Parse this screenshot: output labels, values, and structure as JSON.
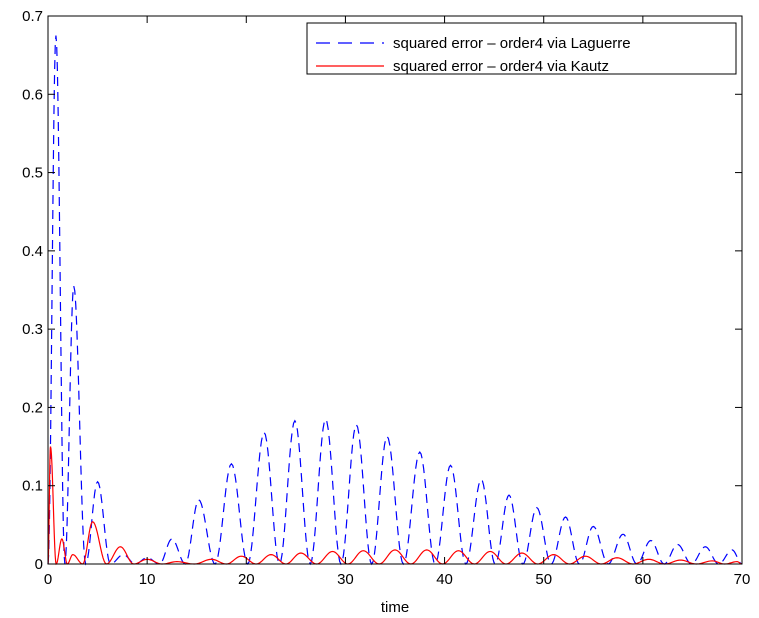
{
  "chart_data": {
    "type": "line",
    "title": "",
    "xlabel": "time",
    "ylabel": "",
    "xlim": [
      0,
      70
    ],
    "ylim": [
      0,
      0.7
    ],
    "xticks": [
      "0",
      "10",
      "20",
      "30",
      "40",
      "50",
      "60",
      "70"
    ],
    "yticks": [
      "0",
      "0.1",
      "0.2",
      "0.3",
      "0.4",
      "0.5",
      "0.6",
      "0.7"
    ],
    "grid": false,
    "legend_position": "top-right",
    "series": [
      {
        "name": "squared error – order4 via Laguerre",
        "color": "#0000ff",
        "dash": "dashed",
        "peaks": [
          [
            0.8,
            0.675
          ],
          [
            2.6,
            0.355
          ],
          [
            5.0,
            0.105
          ],
          [
            7.6,
            0.012
          ],
          [
            10.0,
            0.008
          ],
          [
            12.5,
            0.032
          ],
          [
            15.2,
            0.082
          ],
          [
            18.5,
            0.128
          ],
          [
            21.8,
            0.168
          ],
          [
            24.9,
            0.183
          ],
          [
            28.0,
            0.185
          ],
          [
            31.1,
            0.178
          ],
          [
            34.2,
            0.163
          ],
          [
            37.5,
            0.143
          ],
          [
            40.6,
            0.126
          ],
          [
            43.7,
            0.108
          ],
          [
            46.5,
            0.088
          ],
          [
            49.3,
            0.072
          ],
          [
            52.2,
            0.06
          ],
          [
            55.0,
            0.048
          ],
          [
            58.0,
            0.038
          ],
          [
            60.8,
            0.03
          ],
          [
            63.5,
            0.025
          ],
          [
            66.3,
            0.022
          ],
          [
            69.0,
            0.018
          ]
        ]
      },
      {
        "name": "squared error – order4 via Kautz",
        "color": "#ff0000",
        "dash": "solid",
        "peaks": [
          [
            0.25,
            0.15
          ],
          [
            1.4,
            0.032
          ],
          [
            2.5,
            0.012
          ],
          [
            4.5,
            0.054
          ],
          [
            7.3,
            0.022
          ],
          [
            10.0,
            0.006
          ],
          [
            13.0,
            0.003
          ],
          [
            16.5,
            0.006
          ],
          [
            19.5,
            0.01
          ],
          [
            22.5,
            0.012
          ],
          [
            25.5,
            0.014
          ],
          [
            28.7,
            0.016
          ],
          [
            31.8,
            0.017
          ],
          [
            35.0,
            0.018
          ],
          [
            38.2,
            0.018
          ],
          [
            41.4,
            0.017
          ],
          [
            44.6,
            0.016
          ],
          [
            47.8,
            0.014
          ],
          [
            51.0,
            0.012
          ],
          [
            54.2,
            0.01
          ],
          [
            57.4,
            0.008
          ],
          [
            60.6,
            0.006
          ],
          [
            63.8,
            0.005
          ],
          [
            67.0,
            0.004
          ],
          [
            69.5,
            0.003
          ]
        ]
      }
    ]
  }
}
